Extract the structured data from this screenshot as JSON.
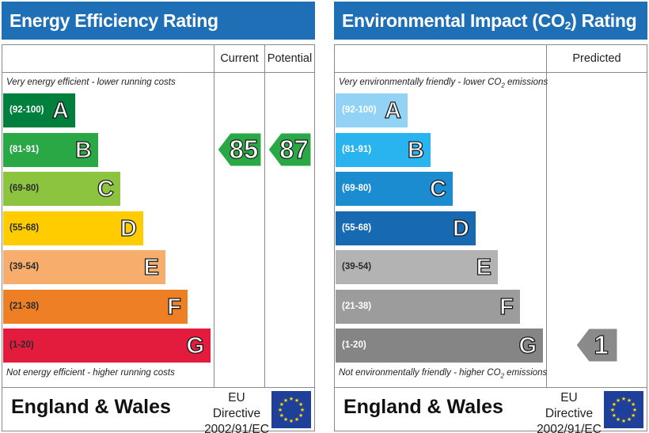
{
  "chart_data": [
    {
      "type": "bar",
      "title": "Energy Efficiency Rating",
      "columns": [
        "Current",
        "Potential"
      ],
      "top_caption": "Very energy efficient - lower running costs",
      "bottom_caption": "Not energy efficient - higher running costs",
      "bands": [
        {
          "range": "(92-100)",
          "letter": "A",
          "color": "#007f3d"
        },
        {
          "range": "(81-91)",
          "letter": "B",
          "color": "#2aa845"
        },
        {
          "range": "(69-80)",
          "letter": "C",
          "color": "#8cc43f"
        },
        {
          "range": "(55-68)",
          "letter": "D",
          "color": "#ffcc00"
        },
        {
          "range": "(39-54)",
          "letter": "E",
          "color": "#f7ad6b"
        },
        {
          "range": "(21-38)",
          "letter": "F",
          "color": "#ee7f24"
        },
        {
          "range": "(1-20)",
          "letter": "G",
          "color": "#e31c3d"
        }
      ],
      "ratings": [
        {
          "column": "Current",
          "value": "85",
          "band": "B",
          "color": "#2aa845"
        },
        {
          "column": "Potential",
          "value": "87",
          "band": "B",
          "color": "#2aa845"
        }
      ],
      "footer": {
        "region": "England & Wales",
        "directive_line1": "EU Directive",
        "directive_line2": "2002/91/EC"
      }
    },
    {
      "type": "bar",
      "title_pre": "Environmental Impact (CO",
      "title_sub": "2",
      "title_post": ") Rating",
      "columns": [
        "Predicted"
      ],
      "top_caption_pre": "Very environmentally friendly - lower CO",
      "top_caption_sub": "2",
      "top_caption_post": " emissions",
      "bottom_caption_pre": "Not environmentally friendly - higher CO",
      "bottom_caption_sub": "2",
      "bottom_caption_post": " emissions",
      "bands": [
        {
          "range": "(92-100)",
          "letter": "A",
          "color": "#92d3f5"
        },
        {
          "range": "(81-91)",
          "letter": "B",
          "color": "#2ab4ef"
        },
        {
          "range": "(69-80)",
          "letter": "C",
          "color": "#1c8cd1"
        },
        {
          "range": "(55-68)",
          "letter": "D",
          "color": "#1769b1"
        },
        {
          "range": "(39-54)",
          "letter": "E",
          "color": "#b3b3b3"
        },
        {
          "range": "(21-38)",
          "letter": "F",
          "color": "#9c9c9c"
        },
        {
          "range": "(1-20)",
          "letter": "G",
          "color": "#858585"
        }
      ],
      "ratings": [
        {
          "column": "Predicted",
          "value": "1",
          "band": "G",
          "color": "#8a8a8a"
        }
      ],
      "footer": {
        "region": "England & Wales",
        "directive_line1": "EU Directive",
        "directive_line2": "2002/91/EC"
      }
    }
  ]
}
